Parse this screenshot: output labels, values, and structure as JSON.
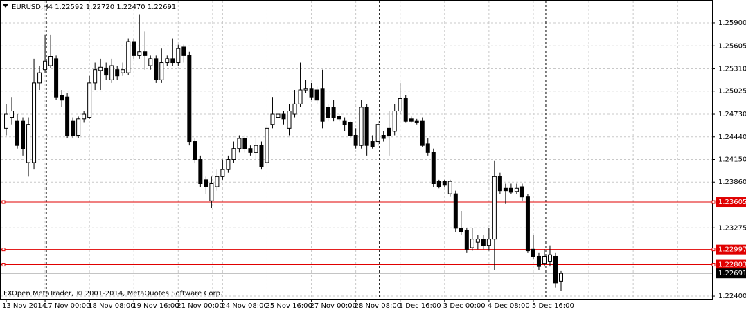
{
  "chart_data": {
    "type": "candlestick",
    "title": "EURUSD,H4",
    "header_values": [
      "1.22592",
      "1.22720",
      "1.22470",
      "1.22691"
    ],
    "footer": "FXOpen MetaTrader, © 2001-2014, MetaQuotes Software Corp.",
    "categories": [
      "13 Nov 2014",
      null,
      null,
      null,
      null,
      null,
      null,
      "17 Nov 00:00",
      null,
      null,
      null,
      null,
      null,
      null,
      null,
      "18 Nov 08:00",
      null,
      null,
      null,
      null,
      null,
      null,
      null,
      "19 Nov 16:00",
      null,
      null,
      null,
      null,
      null,
      null,
      null,
      "21 Nov 00:00",
      null,
      null,
      null,
      null,
      null,
      null,
      null,
      "24 Nov 08:00",
      null,
      null,
      null,
      null,
      null,
      null,
      null,
      "25 Nov 16:00",
      null,
      null,
      null,
      null,
      null,
      null,
      null,
      "27 Nov 00:00",
      null,
      null,
      null,
      null,
      null,
      null,
      null,
      "28 Nov 08:00",
      null,
      null,
      null,
      null,
      null,
      null,
      null,
      "1 Dec 16:00",
      null,
      null,
      null,
      null,
      null,
      null,
      null,
      "3 Dec 00:00",
      null,
      null,
      null,
      null,
      null,
      null,
      null,
      "4 Dec 08:00",
      null,
      null,
      null,
      null,
      null,
      null,
      null,
      "5 Dec 16:00",
      null,
      null,
      null,
      null,
      null
    ],
    "open": [
      1.2455,
      1.2469,
      1.2464,
      1.2464,
      1.2411,
      1.2411,
      1.2513,
      1.253,
      1.2535,
      1.2544,
      1.2497,
      1.2495,
      1.2464,
      1.2446,
      1.2467,
      1.2469,
      1.2513,
      1.2529,
      1.2532,
      1.2517,
      1.253,
      1.2526,
      1.2526,
      1.2566,
      1.2548,
      1.2553,
      1.2535,
      1.2544,
      1.2517,
      1.2539,
      1.2544,
      1.2539,
      1.2559,
      1.2548,
      1.2438,
      1.2415,
      1.2389,
      1.2362,
      1.238,
      1.2393,
      1.2402,
      1.2415,
      1.2429,
      1.2442,
      1.2429,
      1.2424,
      1.2433,
      1.2411,
      1.246,
      1.2469,
      1.2473,
      1.2455,
      1.2473,
      1.2486,
      1.2504,
      1.2506,
      1.2504,
      1.2506,
      1.2482,
      1.2482,
      1.247,
      1.2464,
      1.2462,
      1.2446,
      1.2433,
      1.2482,
      1.2438,
      1.2438,
      1.2446,
      1.2455,
      1.2451,
      1.2477,
      1.2493,
      1.2467,
      1.2464,
      1.2464,
      1.2435,
      1.2424,
      1.2387,
      1.2387,
      1.2371,
      1.2371,
      1.2327,
      1.2324,
      1.2302,
      1.2309,
      1.2313,
      1.2305,
      1.2313,
      1.2393,
      1.2378,
      1.2378,
      1.2374,
      1.238,
      1.2367,
      1.23,
      1.2291,
      1.2282,
      1.2284,
      1.2291,
      1.22592
    ],
    "high": [
      1.2486,
      1.2495,
      1.2473,
      1.2469,
      1.2469,
      1.2544,
      1.2535,
      1.2575,
      1.2575,
      1.2548,
      1.2504,
      1.25,
      1.2469,
      1.247,
      1.2477,
      1.2522,
      1.2539,
      1.2544,
      1.2539,
      1.2544,
      1.2535,
      1.2539,
      1.257,
      1.257,
      1.2601,
      1.2579,
      1.2548,
      1.2548,
      1.2557,
      1.2548,
      1.257,
      1.2562,
      1.2562,
      1.2553,
      1.2442,
      1.242,
      1.2393,
      1.2393,
      1.2402,
      1.2415,
      1.242,
      1.2438,
      1.2446,
      1.2446,
      1.2433,
      1.2442,
      1.2438,
      1.246,
      1.2495,
      1.2477,
      1.2477,
      1.2486,
      1.2504,
      1.2539,
      1.2517,
      1.2513,
      1.2508,
      1.253,
      1.2486,
      1.2491,
      1.2473,
      1.2469,
      1.2464,
      1.2455,
      1.2491,
      1.2486,
      1.2446,
      1.2464,
      1.2451,
      1.2477,
      1.2486,
      1.2513,
      1.2497,
      1.247,
      1.2467,
      1.2469,
      1.2442,
      1.2429,
      1.2389,
      1.2389,
      1.2389,
      1.2375,
      1.2349,
      1.2327,
      1.2327,
      1.2318,
      1.2318,
      1.2327,
      1.2413,
      1.2398,
      1.2384,
      1.2384,
      1.2384,
      1.2384,
      1.2371,
      1.2318,
      1.2296,
      1.23,
      1.2305,
      1.2296,
      1.2272
    ],
    "low": [
      1.2446,
      1.246,
      1.2429,
      1.242,
      1.2393,
      1.2402,
      1.2504,
      1.2526,
      1.2532,
      1.2491,
      1.2482,
      1.2442,
      1.2442,
      1.2442,
      1.2462,
      1.2467,
      1.2504,
      1.2504,
      1.2517,
      1.2513,
      1.2517,
      1.2522,
      1.2523,
      1.2544,
      1.2544,
      1.253,
      1.253,
      1.2513,
      1.2513,
      1.2535,
      1.2535,
      1.2535,
      1.2539,
      1.2433,
      1.2411,
      1.238,
      1.2371,
      1.2353,
      1.2375,
      1.2389,
      1.2398,
      1.2411,
      1.2424,
      1.2424,
      1.242,
      1.2415,
      1.2402,
      1.2406,
      1.2455,
      1.2464,
      1.246,
      1.2446,
      1.2469,
      1.2482,
      1.25,
      1.2491,
      1.2486,
      1.2455,
      1.2464,
      1.2464,
      1.2464,
      1.2451,
      1.2442,
      1.2429,
      1.2429,
      1.242,
      1.2429,
      1.2433,
      1.2438,
      1.242,
      1.2446,
      1.2473,
      1.2462,
      1.2462,
      1.246,
      1.2431,
      1.242,
      1.238,
      1.2378,
      1.238,
      1.2367,
      1.2322,
      1.2318,
      1.2296,
      1.2298,
      1.23,
      1.23,
      1.2298,
      1.2273,
      1.2371,
      1.2358,
      1.2371,
      1.2371,
      1.2362,
      1.2296,
      1.2287,
      1.2273,
      1.2278,
      1.2278,
      1.2251,
      1.2247
    ],
    "close": [
      1.2473,
      1.2477,
      1.2433,
      1.2429,
      1.246,
      1.2513,
      1.2526,
      1.2541,
      1.2547,
      1.2495,
      1.2491,
      1.2446,
      1.2446,
      1.2467,
      1.2473,
      1.2513,
      1.253,
      1.2533,
      1.2523,
      1.2535,
      1.2522,
      1.253,
      1.2566,
      1.2548,
      1.2553,
      1.2548,
      1.2544,
      1.2517,
      1.2539,
      1.2544,
      1.2539,
      1.2557,
      1.2548,
      1.2438,
      1.2415,
      1.2384,
      1.238,
      1.2384,
      1.2393,
      1.2402,
      1.2415,
      1.2429,
      1.2442,
      1.2429,
      1.2424,
      1.2433,
      1.2406,
      1.2455,
      1.2473,
      1.2473,
      1.2467,
      1.2477,
      1.2486,
      1.2504,
      1.2506,
      1.2495,
      1.2491,
      1.2464,
      1.2469,
      1.2469,
      1.2467,
      1.246,
      1.2446,
      1.2433,
      1.2482,
      1.2433,
      1.2431,
      1.246,
      1.2442,
      1.2446,
      1.2477,
      1.2493,
      1.2464,
      1.2464,
      1.2462,
      1.2433,
      1.2424,
      1.2384,
      1.238,
      1.2382,
      1.2387,
      1.2327,
      1.2322,
      1.23,
      1.2313,
      1.2313,
      1.2305,
      1.2313,
      1.2393,
      1.2375,
      1.2375,
      1.2373,
      1.2378,
      1.2367,
      1.2298,
      1.2291,
      1.2278,
      1.2291,
      1.2293,
      1.2257,
      1.22691
    ],
    "up_color": "#ffffff",
    "down_color": "#000000",
    "wick_color": "#000000",
    "ylim": [
      1.22365,
      1.26192
    ],
    "yticks": [
      {
        "value": 1.259,
        "label": "1.25900"
      },
      {
        "value": 1.25605,
        "label": "1.25605"
      },
      {
        "value": 1.2531,
        "label": "1.25310"
      },
      {
        "value": 1.25025,
        "label": "1.25025"
      },
      {
        "value": 1.2473,
        "label": "1.24730"
      },
      {
        "value": 1.2444,
        "label": "1.24440"
      },
      {
        "value": 1.2415,
        "label": "1.24150"
      },
      {
        "value": 1.2386,
        "label": "1.23860"
      },
      {
        "value": 1.23275,
        "label": "1.23275"
      },
      {
        "value": 1.224,
        "label": "1.22400"
      }
    ],
    "levels": [
      {
        "value": 1.23605,
        "label": "1.23605"
      },
      {
        "value": 1.22997,
        "label": "1.22997"
      },
      {
        "value": 1.22803,
        "label": "1.22803"
      }
    ],
    "level_color": "#e00000",
    "price_line": {
      "value": 1.22691,
      "label": "1.22691"
    },
    "grid": true
  }
}
